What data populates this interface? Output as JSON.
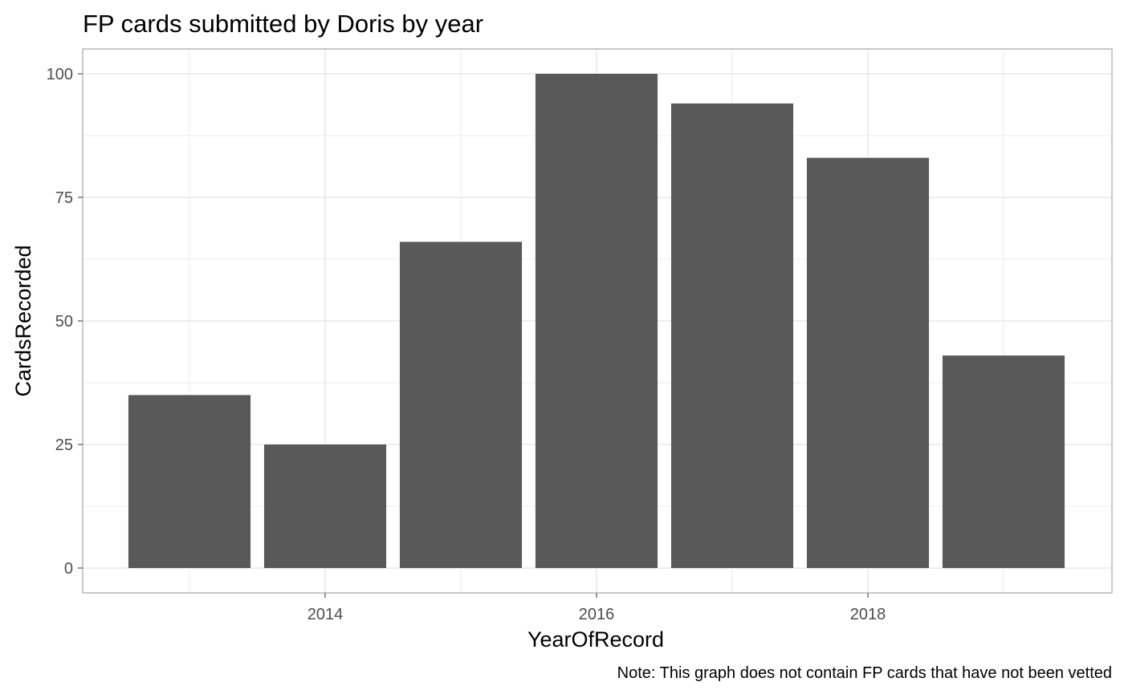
{
  "chart_data": {
    "type": "bar",
    "title": "FP cards submitted by Doris by year",
    "xlabel": "YearOfRecord",
    "ylabel": "CardsRecorded",
    "caption": "Note: This graph does not contain FP cards that have not been vetted",
    "x": [
      2013,
      2014,
      2015,
      2016,
      2017,
      2018,
      2019
    ],
    "values": [
      35,
      25,
      66,
      100,
      94,
      83,
      43
    ],
    "xlim": [
      2012.5,
      2019.5
    ],
    "ylim": [
      0,
      105
    ],
    "x_ticks": [
      2014,
      2016,
      2018
    ],
    "x_tick_labels": [
      "2014",
      "2016",
      "2018"
    ],
    "y_ticks": [
      0,
      25,
      50,
      75,
      100
    ],
    "y_tick_labels": [
      "0",
      "25",
      "50",
      "75",
      "100"
    ],
    "grid": true,
    "legend": "none",
    "bar_color": "#595959",
    "grid_color": "#dedede",
    "panel_border_color": "#b3b3b3"
  }
}
